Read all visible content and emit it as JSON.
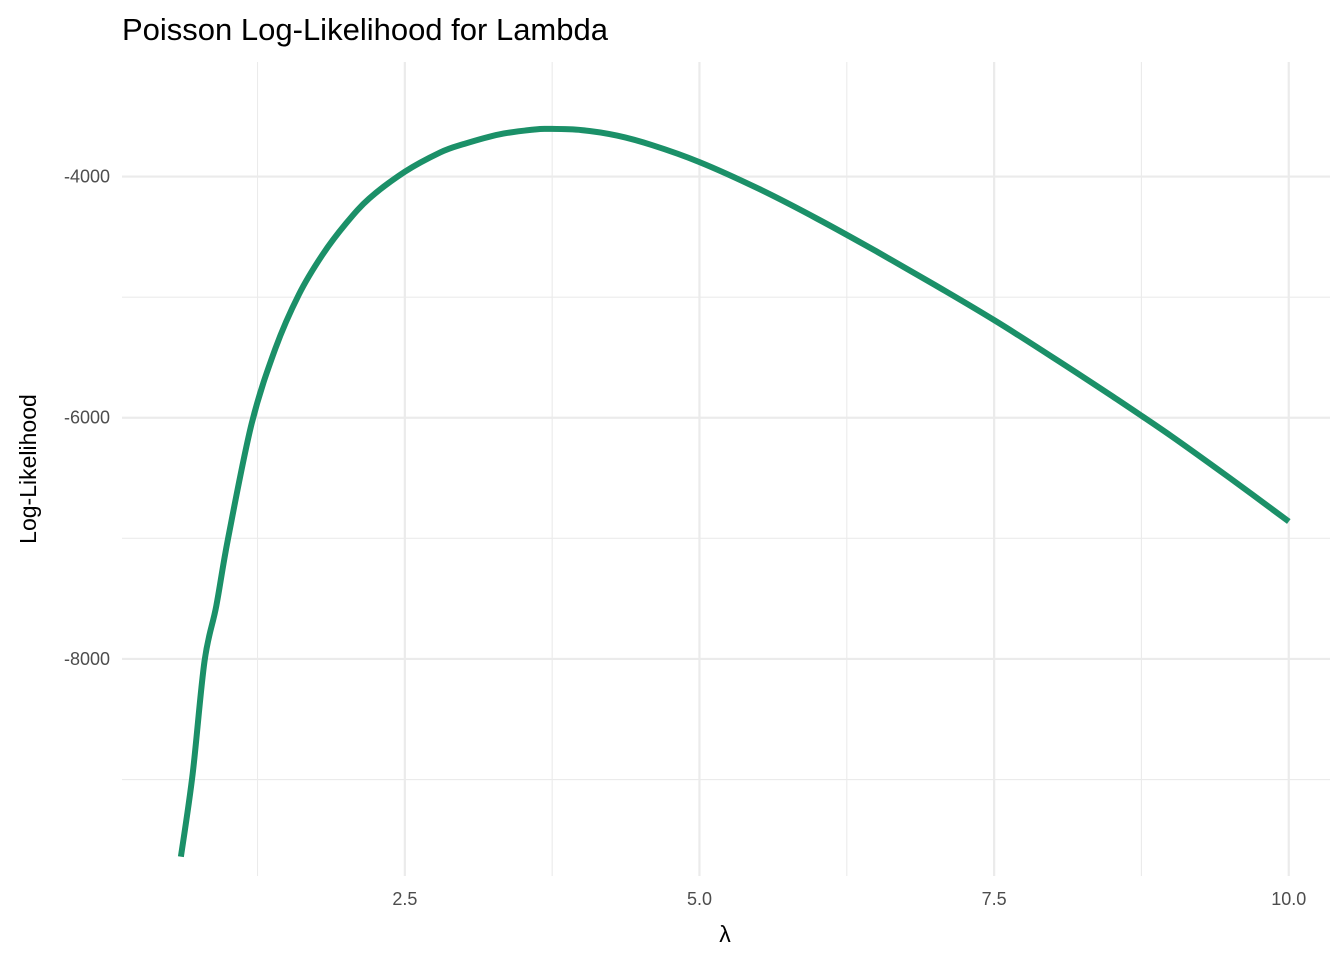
{
  "chart_data": {
    "type": "line",
    "title": "Poisson Log-Likelihood for Lambda",
    "xlabel": "λ",
    "ylabel": "Log-Likelihood",
    "xlim": [
      0.1,
      10.35
    ],
    "ylim": [
      -9800,
      -3050
    ],
    "x_major_ticks": [
      2.5,
      5.0,
      7.5,
      10.0
    ],
    "x_tick_labels": [
      "2.5",
      "5.0",
      "7.5",
      "10.0"
    ],
    "x_minor_ticks": [
      1.25,
      3.75,
      6.25,
      8.75
    ],
    "y_major_ticks": [
      -8000,
      -6000,
      -4000
    ],
    "y_tick_labels": [
      "-8000",
      "-6000",
      "-4000"
    ],
    "y_minor_ticks": [
      -9000,
      -7000,
      -5000,
      -3000
    ],
    "grid": true,
    "line_color": "#1b9068",
    "series": [
      {
        "name": "",
        "x": [
          0.6,
          0.7,
          0.8,
          0.9,
          1.0,
          1.2,
          1.4,
          1.6,
          1.8,
          2.0,
          2.2,
          2.5,
          2.8,
          3.0,
          3.3,
          3.6,
          3.72,
          4.0,
          4.3,
          4.6,
          5.0,
          5.5,
          6.0,
          6.5,
          7.0,
          7.5,
          8.0,
          8.5,
          9.0,
          9.5,
          10.0
        ],
        "y": [
          -9640,
          -8950,
          -8020,
          -7560,
          -7000,
          -6050,
          -5430,
          -4980,
          -4650,
          -4390,
          -4180,
          -3960,
          -3800,
          -3730,
          -3650,
          -3610,
          -3605,
          -3615,
          -3660,
          -3740,
          -3880,
          -4100,
          -4350,
          -4620,
          -4900,
          -5190,
          -5500,
          -5820,
          -6150,
          -6500,
          -6860
        ]
      }
    ]
  }
}
